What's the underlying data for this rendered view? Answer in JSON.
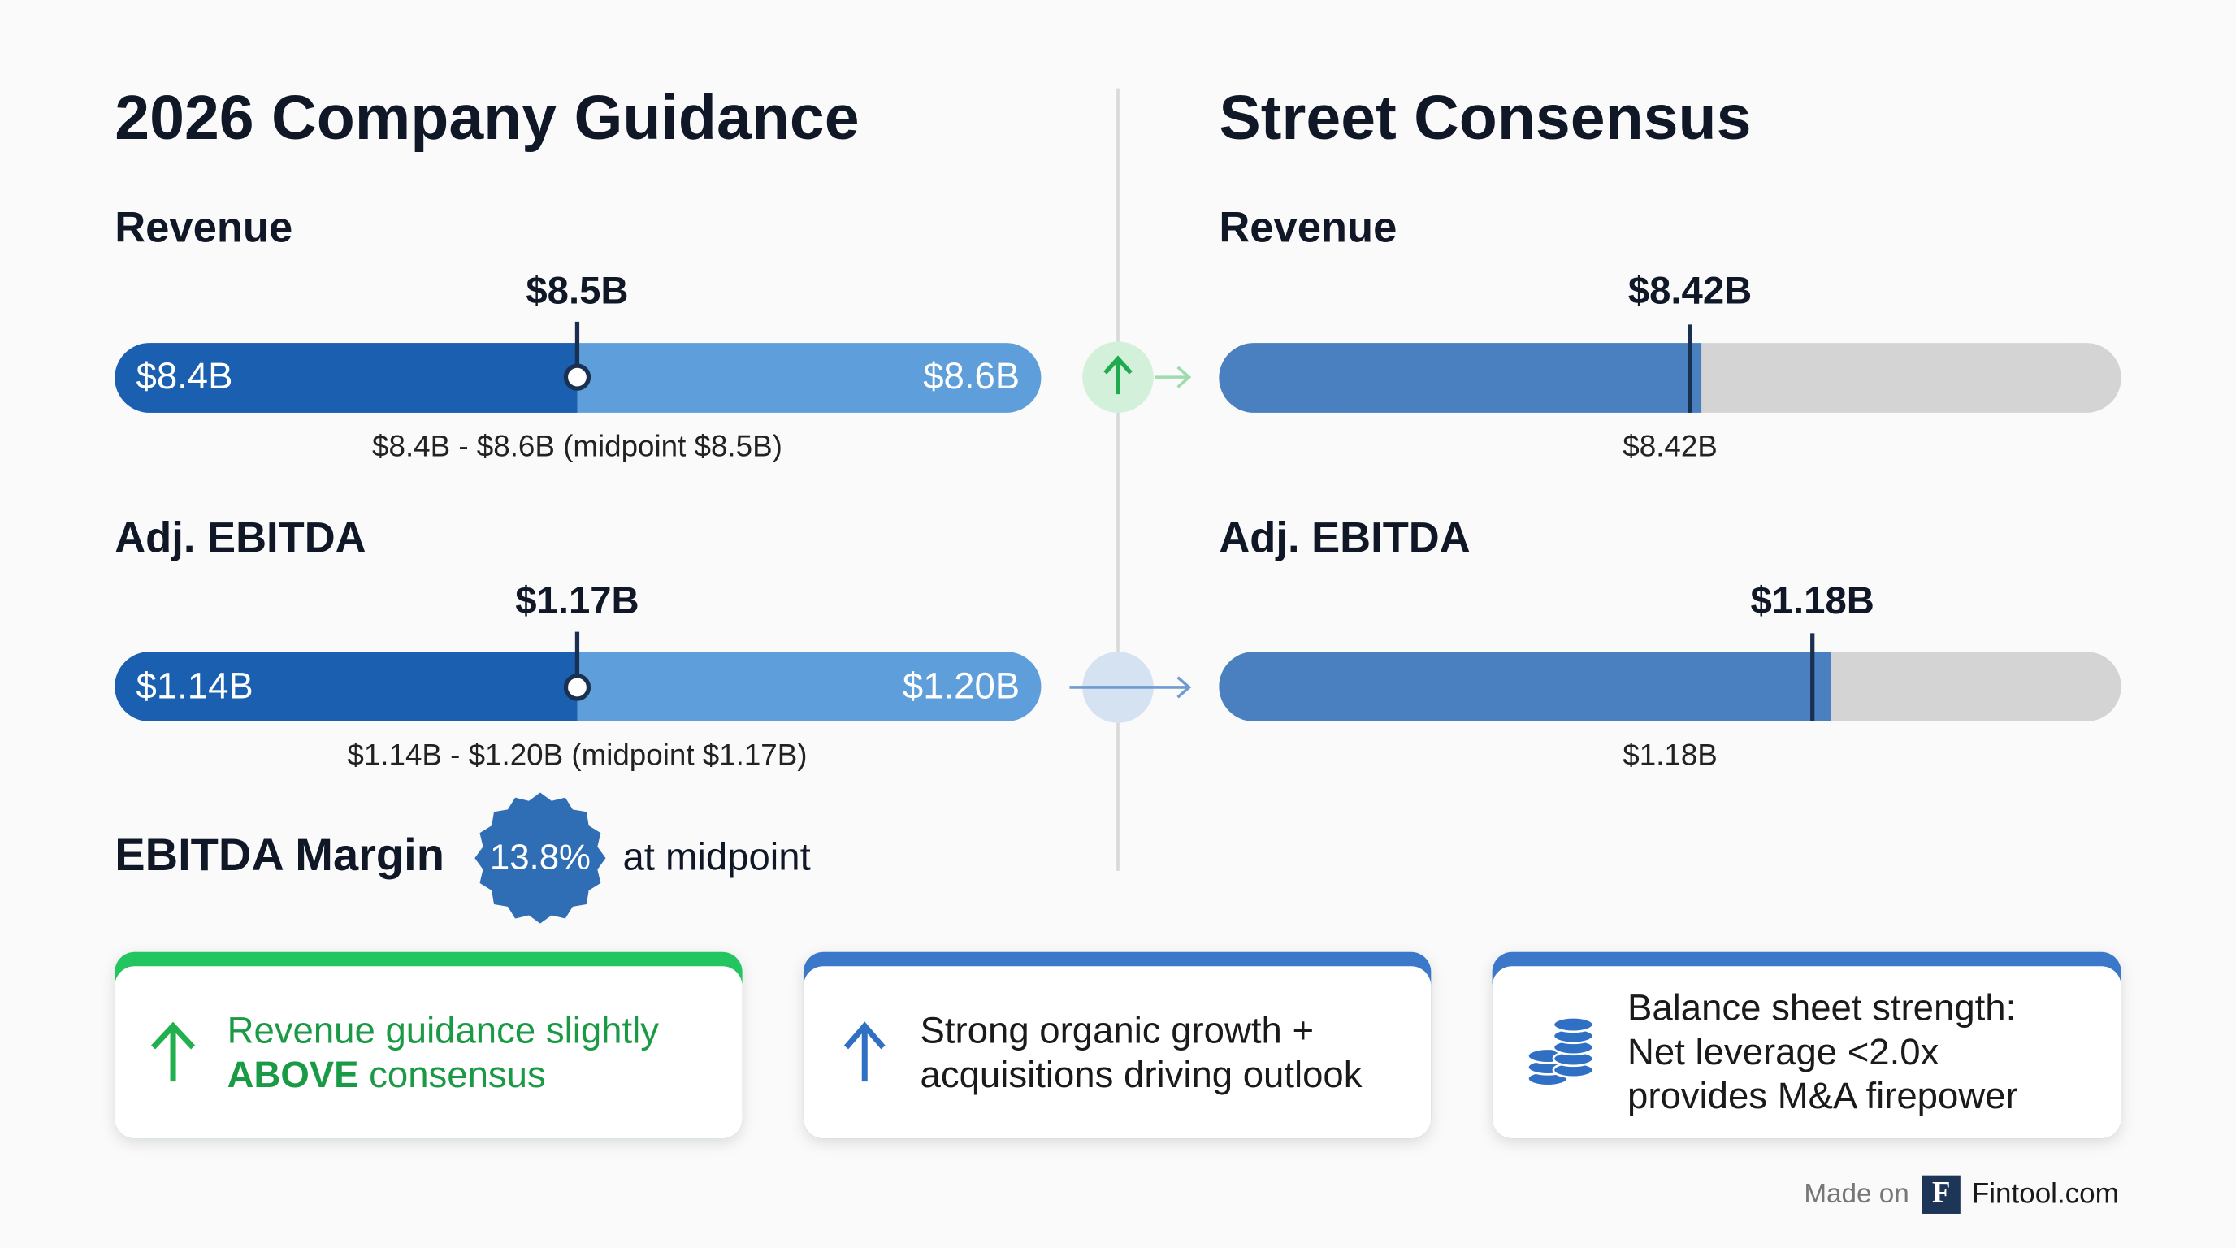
{
  "left": {
    "title": "2026 Company Guidance",
    "revenue": {
      "label": "Revenue",
      "midpoint": "$8.5B",
      "low": "$8.4B",
      "high": "$8.6B",
      "caption": "$8.4B - $8.6B (midpoint $8.5B)"
    },
    "ebitda": {
      "label": "Adj. EBITDA",
      "midpoint": "$1.17B",
      "low": "$1.14B",
      "high": "$1.20B",
      "caption": "$1.14B - $1.20B (midpoint $1.17B)"
    },
    "margin": {
      "label": "EBITDA Margin",
      "value": "13.8%",
      "suffix": "at midpoint"
    }
  },
  "right": {
    "title": "Street Consensus",
    "revenue": {
      "label": "Revenue",
      "value": "$8.42B",
      "caption": "$8.42B"
    },
    "ebitda": {
      "label": "Adj. EBITDA",
      "value": "$1.18B",
      "caption": "$1.18B"
    }
  },
  "cards": [
    {
      "line1": "Revenue guidance slightly",
      "line2_bold": "ABOVE",
      "line2": "consensus"
    },
    {
      "lines": [
        "Strong organic growth +",
        "acquisitions driving outlook"
      ]
    },
    {
      "lines": [
        "Balance sheet strength:",
        "Net leverage <2.0x",
        "provides M&A firepower"
      ]
    }
  ],
  "footer": {
    "made_on": "Made on",
    "logo": "F",
    "site": "Fintool.com"
  }
}
